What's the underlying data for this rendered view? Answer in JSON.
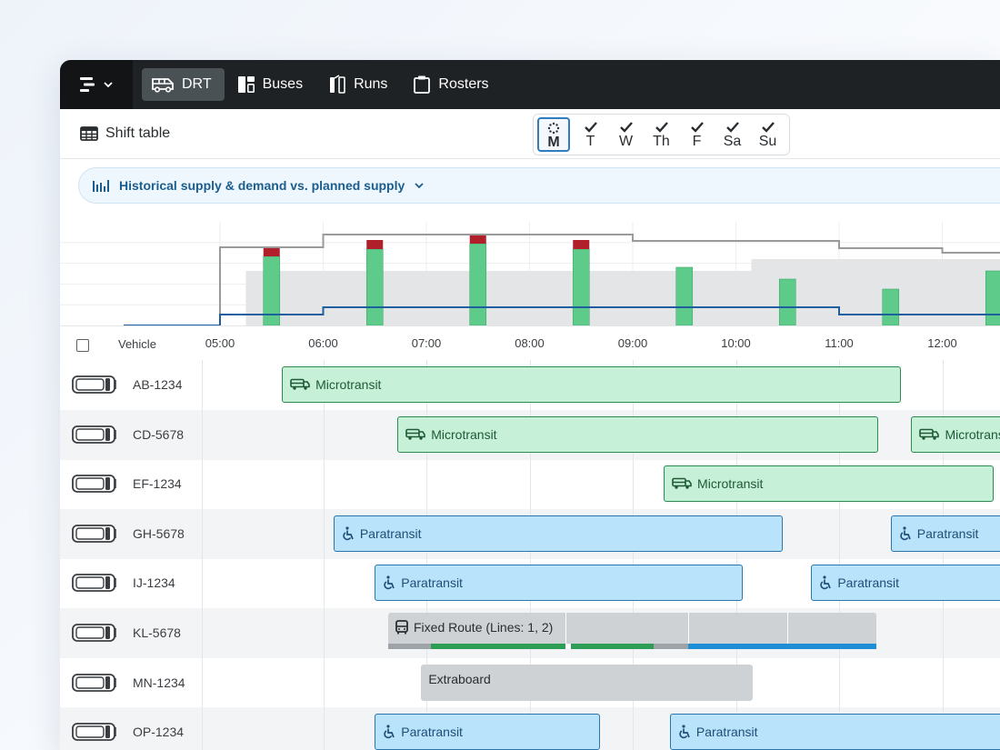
{
  "nav": {
    "tabs": [
      {
        "label": "DRT",
        "icon": "van-icon",
        "active": true
      },
      {
        "label": "Buses",
        "icon": "blocks-icon",
        "active": false
      },
      {
        "label": "Runs",
        "icon": "runs-icon",
        "active": false
      },
      {
        "label": "Rosters",
        "icon": "clipboard-icon",
        "active": false
      }
    ]
  },
  "subheader": {
    "shift_table_label": "Shift table",
    "days": [
      {
        "label": "M",
        "state": "loading"
      },
      {
        "label": "T",
        "state": "done"
      },
      {
        "label": "W",
        "state": "done"
      },
      {
        "label": "Th",
        "state": "done"
      },
      {
        "label": "F",
        "state": "done"
      },
      {
        "label": "Sa",
        "state": "done"
      },
      {
        "label": "Su",
        "state": "done"
      }
    ]
  },
  "banner": {
    "label": "Historical supply & demand vs. planned supply"
  },
  "chart_data": {
    "type": "bar",
    "x_hours": [
      5.5,
      6.5,
      7.5,
      8.5,
      9.5,
      10.5,
      11.5,
      12.5
    ],
    "served": [
      76,
      84,
      90,
      84,
      64,
      51,
      40,
      60
    ],
    "unserved": [
      9,
      10,
      11,
      10,
      0,
      0,
      0,
      0
    ],
    "historical_supply_steps": [
      [
        5.0,
        86
      ],
      [
        6.0,
        100
      ],
      [
        9.0,
        93
      ],
      [
        11.0,
        85
      ],
      [
        12.0,
        80
      ]
    ],
    "planned_supply_steps": [
      [
        5.0,
        12
      ],
      [
        6.0,
        20
      ],
      [
        11.0,
        12
      ]
    ],
    "supply_area_steps": [
      [
        5.25,
        60
      ],
      [
        10.15,
        73
      ],
      [
        12.6,
        73
      ]
    ],
    "ylim": [
      0,
      100
    ],
    "colors": {
      "served": "#5fcb8b",
      "unserved": "#b01f2a",
      "historical": "#9a9a9a",
      "planned": "#1e5fa0",
      "area": "#e4e5e7"
    }
  },
  "timeline": {
    "vehicle_header": "Vehicle",
    "ticks": [
      "05:00",
      "06:00",
      "07:00",
      "08:00",
      "09:00",
      "10:00",
      "11:00",
      "12:00"
    ]
  },
  "rows": [
    {
      "plate": "AB-1234",
      "shifts": [
        {
          "type": "micro",
          "label": "Microtransit",
          "start": 5.6,
          "end": 11.6
        },
        {
          "type": "micro",
          "label": "",
          "start": 12.75,
          "end": 13.2
        }
      ]
    },
    {
      "plate": "CD-5678",
      "shifts": [
        {
          "type": "micro",
          "label": "Microtransit",
          "start": 6.72,
          "end": 11.38
        },
        {
          "type": "micro",
          "label": "Microtransit",
          "start": 11.7,
          "end": 13.2
        }
      ]
    },
    {
      "plate": "EF-1234",
      "shifts": [
        {
          "type": "micro",
          "label": "Microtransit",
          "start": 9.3,
          "end": 12.5
        }
      ]
    },
    {
      "plate": "GH-5678",
      "shifts": [
        {
          "type": "para",
          "label": "Paratransit",
          "start": 6.1,
          "end": 10.45
        },
        {
          "type": "para",
          "label": "Paratransit",
          "start": 11.5,
          "end": 13.2
        }
      ]
    },
    {
      "plate": "IJ-1234",
      "shifts": [
        {
          "type": "para",
          "label": "Paratransit",
          "start": 6.5,
          "end": 10.07
        },
        {
          "type": "para",
          "label": "Paratransit",
          "start": 10.73,
          "end": 13.2
        }
      ]
    },
    {
      "plate": "KL-5678",
      "shifts": [
        {
          "type": "fixed",
          "label": "Fixed Route (Lines: 1, 2)",
          "start": 6.63,
          "end": 11.36
        }
      ]
    },
    {
      "plate": "MN-1234",
      "shifts": [
        {
          "type": "extra",
          "label": "Extraboard",
          "start": 6.95,
          "end": 10.16
        }
      ]
    },
    {
      "plate": "OP-1234",
      "shifts": [
        {
          "type": "para",
          "label": "Paratransit",
          "start": 6.5,
          "end": 8.68
        },
        {
          "type": "para",
          "label": "Paratransit",
          "start": 9.36,
          "end": 13.2
        }
      ]
    }
  ],
  "fixed_route": {
    "dividers": [
      8.35,
      9.54,
      10.5
    ],
    "strip": [
      {
        "start": 6.63,
        "end": 7.04,
        "color": "#9ea3a7"
      },
      {
        "start": 7.04,
        "end": 8.35,
        "color": "#2e9e57"
      },
      {
        "start": 8.35,
        "end": 8.4,
        "color": "#ffffff"
      },
      {
        "start": 8.4,
        "end": 9.2,
        "color": "#2e9e57"
      },
      {
        "start": 9.2,
        "end": 9.54,
        "color": "#9ea3a7"
      },
      {
        "start": 9.54,
        "end": 11.36,
        "color": "#1e8fd6"
      }
    ]
  }
}
